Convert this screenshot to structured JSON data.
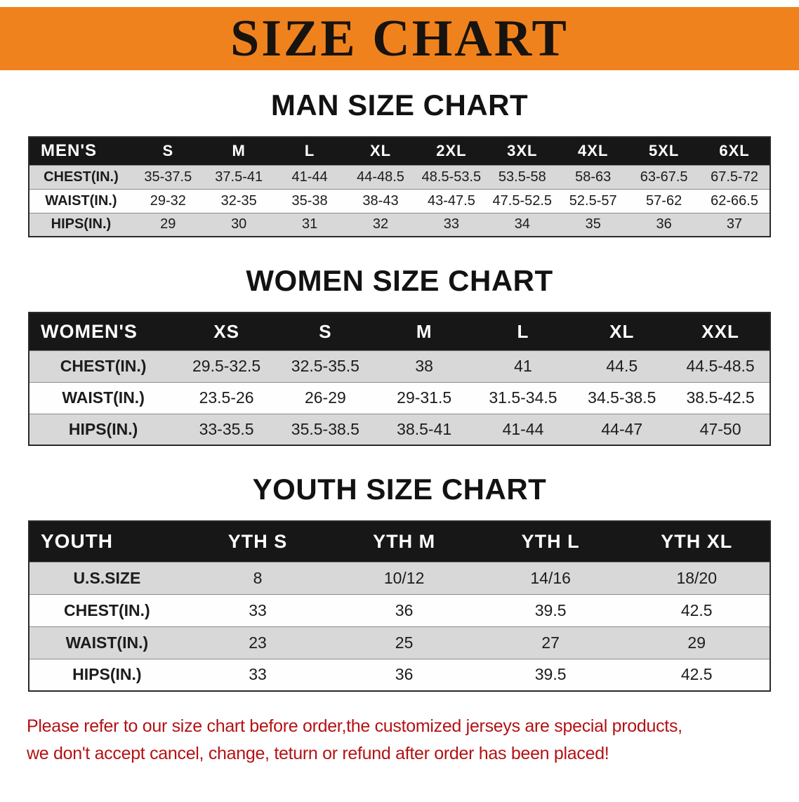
{
  "banner": {
    "title": "SIZE CHART",
    "bg_color": "#f0821e",
    "text_color": "#17130e"
  },
  "palette": {
    "table_header_bg": "#171717",
    "table_header_text": "#ffffff",
    "row_stripe": "#d8d8d8",
    "note_color": "#b41214"
  },
  "chart_data": [
    {
      "type": "table",
      "heading": "MAN SIZE CHART",
      "header": [
        "MEN'S",
        "S",
        "M",
        "L",
        "XL",
        "2XL",
        "3XL",
        "4XL",
        "5XL",
        "6XL"
      ],
      "rows": [
        [
          "CHEST(IN.)",
          "35-37.5",
          "37.5-41",
          "41-44",
          "44-48.5",
          "48.5-53.5",
          "53.5-58",
          "58-63",
          "63-67.5",
          "67.5-72"
        ],
        [
          "WAIST(IN.)",
          "29-32",
          "32-35",
          "35-38",
          "38-43",
          "43-47.5",
          "47.5-52.5",
          "52.5-57",
          "57-62",
          "62-66.5"
        ],
        [
          "HIPS(IN.)",
          "29",
          "30",
          "31",
          "32",
          "33",
          "34",
          "35",
          "36",
          "37"
        ]
      ]
    },
    {
      "type": "table",
      "heading": "WOMEN SIZE CHART",
      "header": [
        "WOMEN'S",
        "XS",
        "S",
        "M",
        "L",
        "XL",
        "XXL"
      ],
      "rows": [
        [
          "CHEST(IN.)",
          "29.5-32.5",
          "32.5-35.5",
          "38",
          "41",
          "44.5",
          "44.5-48.5"
        ],
        [
          "WAIST(IN.)",
          "23.5-26",
          "26-29",
          "29-31.5",
          "31.5-34.5",
          "34.5-38.5",
          "38.5-42.5"
        ],
        [
          "HIPS(IN.)",
          "33-35.5",
          "35.5-38.5",
          "38.5-41",
          "41-44",
          "44-47",
          "47-50"
        ]
      ]
    },
    {
      "type": "table",
      "heading": "YOUTH SIZE CHART",
      "header": [
        "YOUTH",
        "YTH S",
        "YTH M",
        "YTH L",
        "YTH XL"
      ],
      "rows": [
        [
          "U.S.SIZE",
          "8",
          "10/12",
          "14/16",
          "18/20"
        ],
        [
          "CHEST(IN.)",
          "33",
          "36",
          "39.5",
          "42.5"
        ],
        [
          "WAIST(IN.)",
          "23",
          "25",
          "27",
          "29"
        ],
        [
          "HIPS(IN.)",
          "33",
          "36",
          "39.5",
          "42.5"
        ]
      ]
    }
  ],
  "footer_note": {
    "line1": "Please refer to our size chart before order,the customized jerseys are special products,",
    "line2": "we don't accept cancel, change, teturn or refund after order has been placed!"
  }
}
